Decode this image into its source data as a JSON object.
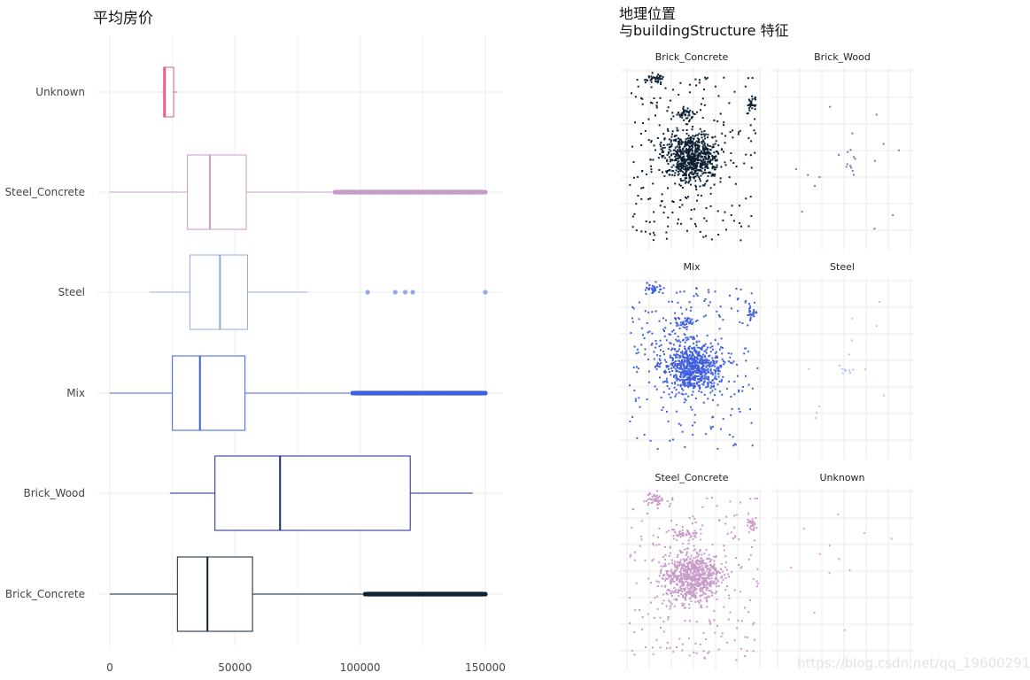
{
  "chart_data": [
    {
      "type": "box",
      "title": "平均房价",
      "xlabel": "",
      "ylabel": "",
      "xlim": [
        0,
        150000
      ],
      "x_ticks": [
        0,
        50000,
        100000,
        150000
      ],
      "x_tick_labels": [
        "0",
        "50000",
        "100000",
        "150000"
      ],
      "grid": true,
      "categories": [
        "Unknown",
        "Steel_Concrete",
        "Steel",
        "Mix",
        "Brick_Wood",
        "Brick_Concrete"
      ],
      "series": [
        {
          "category": "Unknown",
          "color": "#e0597a",
          "min": 21000,
          "q1": 21500,
          "median": 22000,
          "q3": 25500,
          "max": 27000,
          "outliers": []
        },
        {
          "category": "Steel_Concrete",
          "color": "#c89ac8",
          "min": 0,
          "q1": 31000,
          "median": 40000,
          "q3": 54500,
          "max": 89000,
          "outliers": [
            90000,
            95000,
            100000,
            105000,
            110000,
            115000,
            120000,
            125000,
            130000,
            135000,
            140000,
            145000,
            150000
          ]
        },
        {
          "category": "Steel",
          "color": "#8fa8ee",
          "min": 16000,
          "q1": 32000,
          "median": 44000,
          "q3": 55000,
          "max": 79000,
          "outliers": [
            103000,
            114000,
            118000,
            121000,
            150000
          ]
        },
        {
          "category": "Mix",
          "color": "#3f5fdf",
          "min": 0,
          "q1": 25000,
          "median": 36000,
          "q3": 54000,
          "max": 96000,
          "outliers": [
            97000,
            102000,
            107000,
            112000,
            117000,
            122000,
            127000,
            132000,
            137000,
            142000,
            147000,
            150000
          ]
        },
        {
          "category": "Brick_Wood",
          "color": "#1a2a8f",
          "min": 24000,
          "q1": 42000,
          "median": 68000,
          "q3": 120000,
          "max": 145000,
          "outliers": []
        },
        {
          "category": "Brick_Concrete",
          "color": "#0e2233",
          "min": 0,
          "q1": 27000,
          "median": 39000,
          "q3": 57000,
          "max": 101000,
          "outliers": [
            102000,
            105000,
            108000,
            111000,
            114000,
            117000,
            120000,
            123000,
            126000,
            129000,
            132000,
            135000,
            138000,
            141000,
            144000,
            147000,
            150000
          ]
        }
      ]
    },
    {
      "type": "scatter",
      "title_line1": "地理位置",
      "title_line2": "与buildingStructure 特征",
      "facets": [
        {
          "label": "Brick_Concrete",
          "color": "#0e2233",
          "density": "high"
        },
        {
          "label": "Brick_Wood",
          "color": "#6b7fa8",
          "density": "sparse"
        },
        {
          "label": "Mix",
          "color": "#3f5fdf",
          "density": "high"
        },
        {
          "label": "Steel",
          "color": "#b8c4ee",
          "density": "sparse"
        },
        {
          "label": "Steel_Concrete",
          "color": "#c89ac8",
          "density": "high"
        },
        {
          "label": "Unknown",
          "color": "#e0a0b8",
          "density": "sparse"
        }
      ],
      "grid": true
    }
  ],
  "watermark": "https://blog.csdn.net/qq_19600291"
}
